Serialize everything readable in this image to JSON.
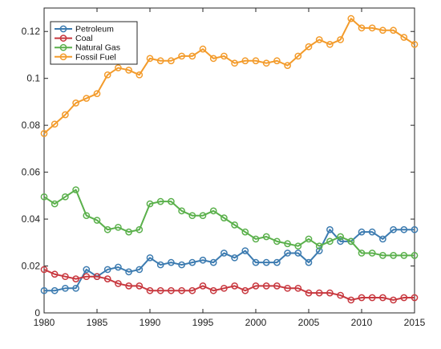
{
  "chart_data": {
    "type": "line",
    "title": "",
    "xlabel": "",
    "ylabel": "",
    "xlim": [
      1980,
      2015
    ],
    "ylim": [
      0,
      0.13
    ],
    "x_ticks": [
      1980,
      1985,
      1990,
      1995,
      2000,
      2005,
      2010,
      2015
    ],
    "x_tick_labels": [
      "1980",
      "1985",
      "1990",
      "1995",
      "2000",
      "2005",
      "2010",
      "2015"
    ],
    "y_ticks": [
      0,
      0.02,
      0.04,
      0.06,
      0.08,
      0.1,
      0.12
    ],
    "y_tick_labels": [
      "0",
      "0.02",
      "0.04",
      "0.06",
      "0.08",
      "0.1",
      "0.12"
    ],
    "grid": false,
    "legend_position": "top-left",
    "x": [
      1980,
      1981,
      1982,
      1983,
      1984,
      1985,
      1986,
      1987,
      1988,
      1989,
      1990,
      1991,
      1992,
      1993,
      1994,
      1995,
      1996,
      1997,
      1998,
      1999,
      2000,
      2001,
      2002,
      2003,
      2004,
      2005,
      2006,
      2007,
      2008,
      2009,
      2010,
      2011,
      2012,
      2013,
      2014,
      2015
    ],
    "series": [
      {
        "name": "Petroleum",
        "color": "#3c7bb0",
        "values": [
          0.0095,
          0.0095,
          0.0105,
          0.0105,
          0.0185,
          0.0155,
          0.0185,
          0.0195,
          0.0175,
          0.0185,
          0.0235,
          0.0205,
          0.0215,
          0.0205,
          0.0215,
          0.0225,
          0.0215,
          0.0255,
          0.0235,
          0.0265,
          0.0215,
          0.0215,
          0.0215,
          0.0255,
          0.0255,
          0.0215,
          0.0265,
          0.0355,
          0.0305,
          0.0305,
          0.0345,
          0.0345,
          0.0315,
          0.0355,
          0.0355,
          0.0355
        ]
      },
      {
        "name": "Coal",
        "color": "#c8383f",
        "values": [
          0.0185,
          0.0165,
          0.0155,
          0.0145,
          0.0155,
          0.0155,
          0.0145,
          0.0125,
          0.0115,
          0.0115,
          0.0095,
          0.0095,
          0.0095,
          0.0095,
          0.0095,
          0.0115,
          0.0095,
          0.0105,
          0.0115,
          0.0095,
          0.0115,
          0.0115,
          0.0115,
          0.0105,
          0.0105,
          0.0085,
          0.0085,
          0.0085,
          0.0075,
          0.0055,
          0.0065,
          0.0065,
          0.0065,
          0.0055,
          0.0065,
          0.0065
        ]
      },
      {
        "name": "Natural Gas",
        "color": "#5ab04b",
        "values": [
          0.0495,
          0.0465,
          0.0495,
          0.0525,
          0.0415,
          0.0395,
          0.0355,
          0.0365,
          0.0345,
          0.0355,
          0.0465,
          0.0475,
          0.0475,
          0.0435,
          0.0415,
          0.0415,
          0.0435,
          0.0405,
          0.0375,
          0.0345,
          0.0315,
          0.0325,
          0.0305,
          0.0295,
          0.0285,
          0.0315,
          0.0285,
          0.0305,
          0.0325,
          0.0305,
          0.0255,
          0.0255,
          0.0245,
          0.0245,
          0.0245,
          0.0245
        ]
      },
      {
        "name": "Fossil Fuel",
        "color": "#f39b2b",
        "values": [
          0.0765,
          0.0805,
          0.0845,
          0.0895,
          0.0915,
          0.0935,
          0.1015,
          0.1045,
          0.1035,
          0.1015,
          0.1085,
          0.1075,
          0.1075,
          0.1095,
          0.1095,
          0.1125,
          0.1085,
          0.1095,
          0.1065,
          0.1075,
          0.1075,
          0.1065,
          0.1075,
          0.1055,
          0.1095,
          0.1135,
          0.1165,
          0.1145,
          0.1165,
          0.1255,
          0.1215,
          0.1215,
          0.1205,
          0.1205,
          0.1175,
          0.1145
        ]
      }
    ]
  }
}
